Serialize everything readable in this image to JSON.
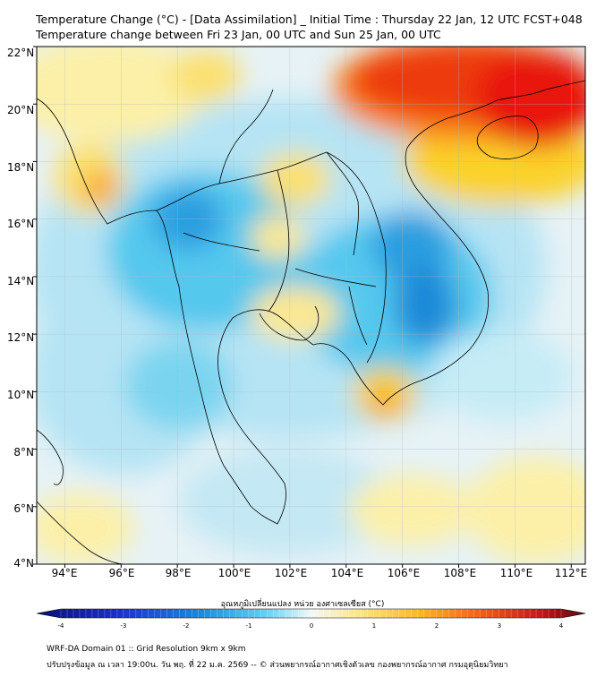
{
  "header": {
    "title_line1": "Temperature Change (°C) - [Data Assimilation] _ Initial Time : Thursday 22 Jan, 12 UTC FCST+048",
    "title_line2": "Temperature change between Fri 23 Jan, 00 UTC and Sun 25 Jan, 00 UTC"
  },
  "map": {
    "lat_range": [
      4,
      22
    ],
    "lon_range": [
      93,
      112.5
    ],
    "y_labels": [
      "22°N",
      "20°N",
      "18°N",
      "16°N",
      "14°N",
      "12°N",
      "10°N",
      "8°N",
      "6°N",
      "4°N"
    ],
    "x_labels": [
      "94°E",
      "96°E",
      "98°E",
      "100°E",
      "102°E",
      "104°E",
      "106°E",
      "108°E",
      "110°E",
      "112°E"
    ],
    "colors": {
      "strong_warm": "#e81208",
      "warm": "#f88a1e",
      "mild_warm": "#fbd22a",
      "slight_warm": "#fcf0a8",
      "neutral": "#eef4f6",
      "slight_cool": "#b6e4f4",
      "cool": "#3fc2ec",
      "strong_cool": "#1e8ad8",
      "coastline": "#000000"
    }
  },
  "colorbar": {
    "title": "อุณหภูมิเปลี่ยนแปลง หน่วย องศาเซลเซียส (°C)",
    "ticks": [
      "-4",
      "-3",
      "-2",
      "-1",
      "0",
      "1",
      "2",
      "3",
      "4"
    ],
    "min": -4,
    "max": 4
  },
  "footer": {
    "line1": "WRF-DA Domain 01 :: Grid Resolution 9km x 9km",
    "line2": "ปรับปรุงข้อมูล ณ เวลา 19:00น. วัน พฤ. ที่ 22 ม.ค. 2569 -- © ส่วนพยากรณ์อากาศเชิงตัวเลข กองพยากรณ์อากาศ กรมอุตุนิยมวิทยา"
  }
}
